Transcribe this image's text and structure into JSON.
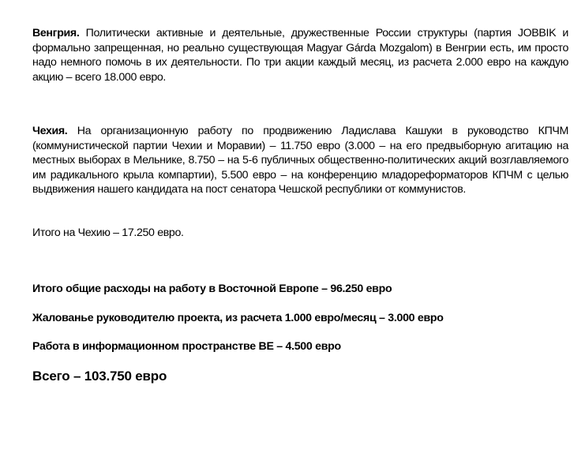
{
  "hungary": {
    "heading": "Венгрия.",
    "text": " Политически активные и деятельные, дружественные России структуры (партия JOBBIK и формально запрещенная, но реально существующая Magyar Gárda Mozgalom) в Венгрии есть, им просто надо немного помочь в их деятельности. По три акции каждый месяц, из расчета 2.000 евро на каждую акцию – всего 18.000 евро."
  },
  "czech": {
    "heading": "Чехия.",
    "text": " На организационную работу по продвижению Ладислава Кашуки в руководство КПЧМ (коммунистической партии Чехии и Моравии) – 11.750 евро (3.000 – на его предвыборную агитацию на местных выборах в Мельнике, 8.750 – на 5-6 публичных общественно-политических акций возглавляемого им радикального крыла компартии), 5.500 евро – на конференцию младореформаторов КПЧМ с целью выдвижения нашего кандидата на пост сенатора Чешской республики от коммунистов.",
    "total": "Итого на Чехию – 17.250 евро."
  },
  "summary": {
    "eastern_europe_total": "Итого общие расходы на работу в Восточной Европе – 96.250 евро",
    "salary": "Жалованье руководителю проекта, из расчета 1.000 евро/месяц – 3.000 евро",
    "info_space": "Работа в информационном пространстве ВЕ – 4.500 евро",
    "grand_total": "Всего – 103.750 евро"
  }
}
